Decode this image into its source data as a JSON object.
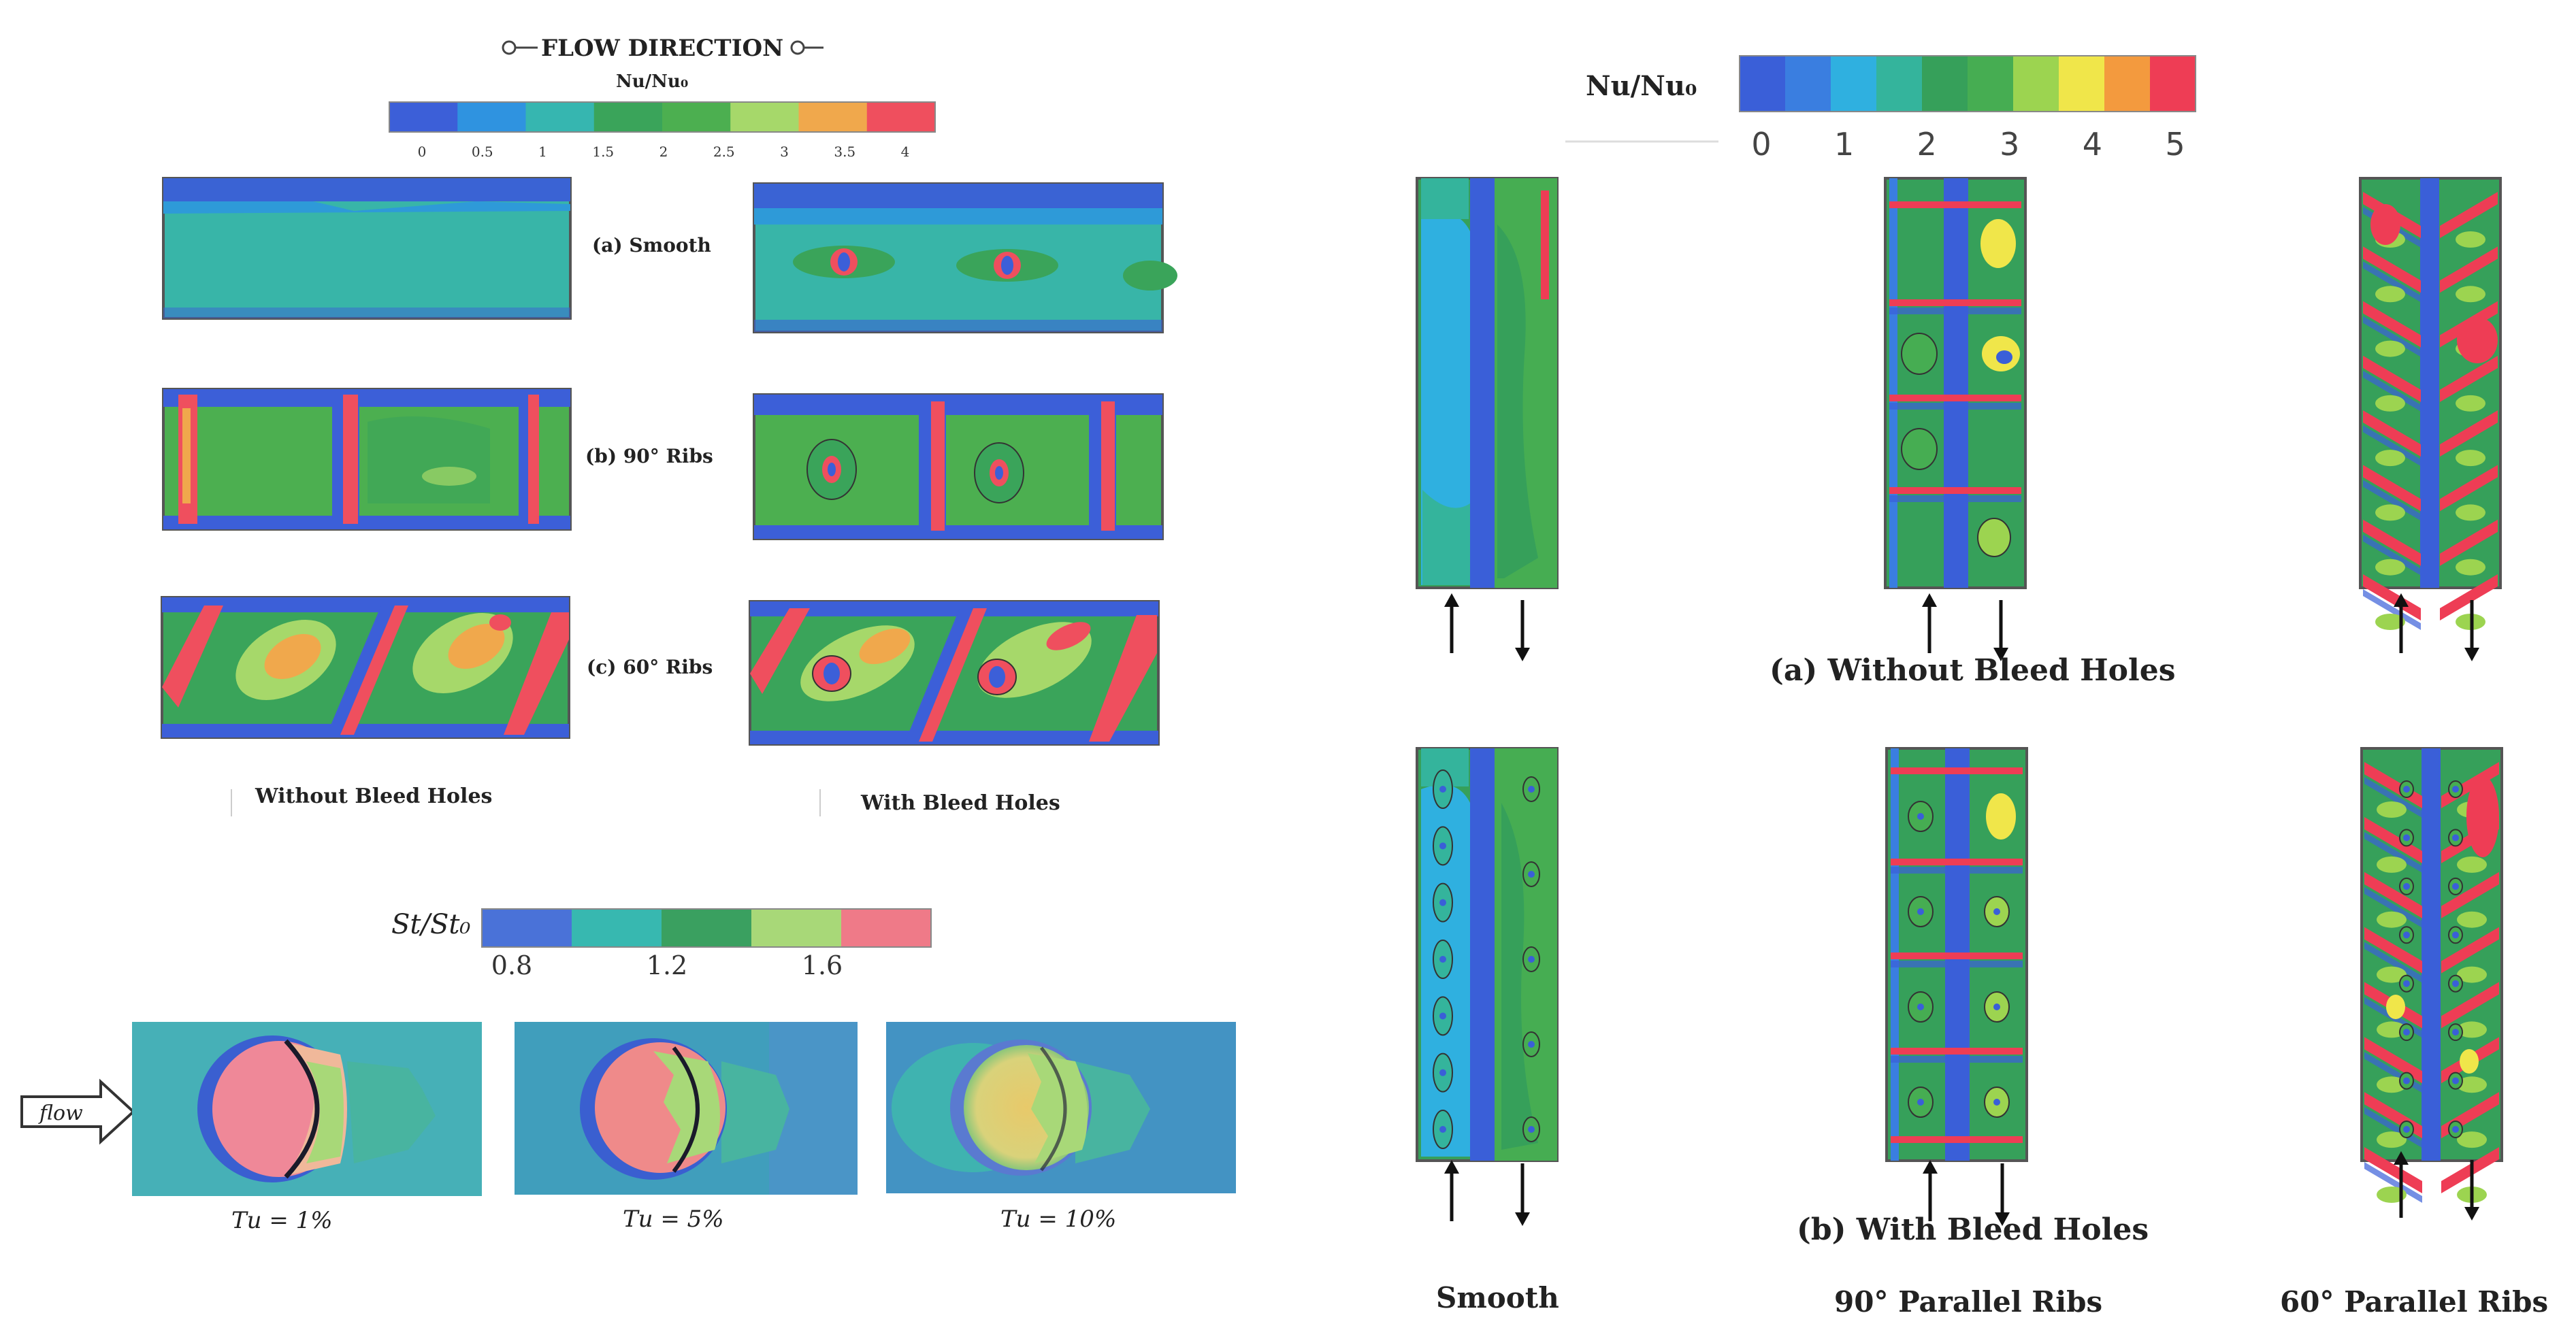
{
  "top_left": {
    "header": "FLOW DIRECTION",
    "colorbar_label": "Nu/Nu₀",
    "colorbar_ticks": [
      "0",
      "0.5",
      "1",
      "1.5",
      "2",
      "2.5",
      "3",
      "3.5",
      "4"
    ],
    "colorbar_colors": [
      "#3c5fd8",
      "#2f93e0",
      "#36b6b0",
      "#3aa45a",
      "#4caf50",
      "#a6d86a",
      "#f0a84c",
      "#ef4f5e"
    ],
    "rows": [
      {
        "label": "(a) Smooth"
      },
      {
        "label": "(b) 90° Ribs"
      },
      {
        "label": "(c) 60° Ribs"
      }
    ],
    "col_left": "Without Bleed Holes",
    "col_right": "With Bleed Holes"
  },
  "bottom_left": {
    "colorbar_label": "St/St₀",
    "colorbar_ticks": [
      "0.8",
      "1.2",
      "1.6"
    ],
    "colorbar_colors": [
      "#4a72d8",
      "#37b8b0",
      "#3aa060",
      "#a8d878",
      "#ef7a88"
    ],
    "flow_label": "flow",
    "panels": [
      {
        "caption": "Tu = 1%"
      },
      {
        "caption": "Tu = 5%"
      },
      {
        "caption": "Tu = 10%"
      }
    ]
  },
  "right": {
    "colorbar_label": "Nu/Nu₀",
    "colorbar_ticks": [
      "0",
      "1",
      "2",
      "3",
      "4",
      "5"
    ],
    "colorbar_colors": [
      "#3a5fd8",
      "#3a7ee0",
      "#2fb0e0",
      "#34b49c",
      "#36a05a",
      "#46ad52",
      "#9cd450",
      "#f0e64a",
      "#f39a3e",
      "#ee3d55"
    ],
    "row_a_caption": "(a) Without Bleed Holes",
    "row_b_caption": "(b) With Bleed Holes",
    "columns": [
      {
        "label": "Smooth"
      },
      {
        "label": "90° Parallel Ribs"
      },
      {
        "label": "60° Parallel Ribs"
      }
    ]
  }
}
